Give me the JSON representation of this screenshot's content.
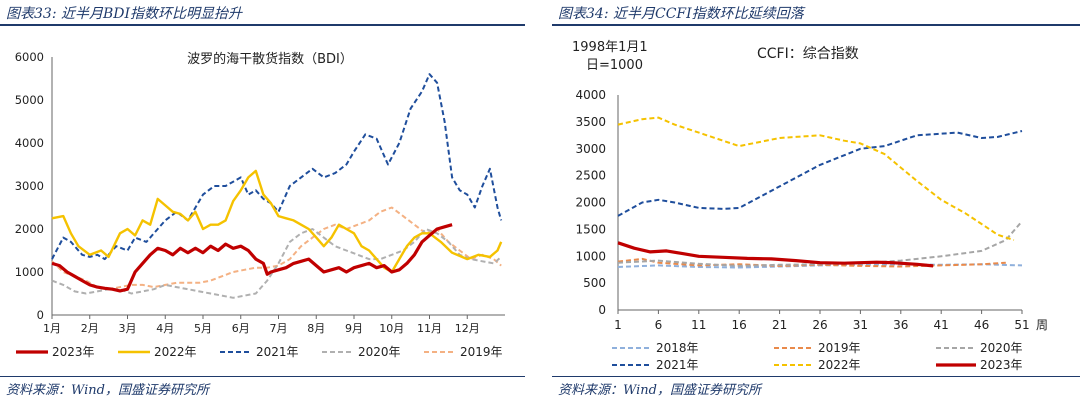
{
  "chart_data": [
    {
      "type": "line",
      "header": "图表33: 近半月BDI指数环比明显抬升",
      "title": "波罗的海干散货指数（BDI）",
      "source": "资料来源：Wind，国盛证券研究所",
      "x_ticks": [
        "1月",
        "2月",
        "3月",
        "4月",
        "5月",
        "6月",
        "7月",
        "8月",
        "9月",
        "10月",
        "11月",
        "12月"
      ],
      "ylim": [
        0,
        6000
      ],
      "y_ticks": [
        "0",
        "1000",
        "2000",
        "3000",
        "4000",
        "5000",
        "6000"
      ],
      "grid": false,
      "legend_position": "bottom",
      "series": [
        {
          "name": "2023年",
          "color": "#c00000",
          "style": "solid-thick",
          "x": [
            0,
            0.2,
            0.4,
            0.6,
            0.8,
            1.0,
            1.2,
            1.4,
            1.6,
            1.8,
            2.0,
            2.1,
            2.2,
            2.4,
            2.6,
            2.8,
            3.0,
            3.2,
            3.4,
            3.6,
            3.8,
            4.0,
            4.2,
            4.4,
            4.6,
            4.8,
            5.0,
            5.2,
            5.4,
            5.6,
            5.7,
            5.8,
            6.0,
            6.2,
            6.4,
            6.6,
            6.8,
            7.0,
            7.2,
            7.4,
            7.6,
            7.8,
            8.0,
            8.2,
            8.4,
            8.6,
            8.8,
            9.0,
            9.2,
            9.4,
            9.6,
            9.8,
            10.0,
            10.2,
            10.4,
            10.6
          ],
          "values": [
            1200,
            1150,
            1000,
            900,
            800,
            700,
            650,
            620,
            600,
            560,
            600,
            800,
            1000,
            1200,
            1400,
            1550,
            1500,
            1400,
            1550,
            1450,
            1550,
            1450,
            1600,
            1500,
            1650,
            1550,
            1600,
            1500,
            1300,
            1200,
            950,
            1000,
            1050,
            1100,
            1200,
            1250,
            1300,
            1150,
            1000,
            1050,
            1100,
            1000,
            1100,
            1150,
            1200,
            1100,
            1150,
            1000,
            1050,
            1200,
            1400,
            1700,
            1850,
            2000,
            2050,
            2100
          ]
        },
        {
          "name": "2022年",
          "color": "#f5c200",
          "style": "solid",
          "x": [
            0,
            0.3,
            0.5,
            0.7,
            1.0,
            1.3,
            1.5,
            1.8,
            2.0,
            2.2,
            2.4,
            2.6,
            2.8,
            3.0,
            3.2,
            3.4,
            3.6,
            3.8,
            4.0,
            4.2,
            4.4,
            4.6,
            4.8,
            5.0,
            5.2,
            5.4,
            5.6,
            5.8,
            6.0,
            6.2,
            6.4,
            6.6,
            6.8,
            7.0,
            7.2,
            7.4,
            7.6,
            7.8,
            8.0,
            8.2,
            8.4,
            8.6,
            8.8,
            9.0,
            9.2,
            9.4,
            9.6,
            9.8,
            10.0,
            10.3,
            10.6,
            11.0,
            11.3,
            11.6,
            11.8,
            11.9
          ],
          "values": [
            2250,
            2300,
            1900,
            1600,
            1400,
            1500,
            1350,
            1900,
            2000,
            1850,
            2200,
            2100,
            2700,
            2550,
            2400,
            2350,
            2200,
            2400,
            2000,
            2100,
            2100,
            2200,
            2650,
            2900,
            3200,
            3350,
            2800,
            2600,
            2300,
            2250,
            2200,
            2100,
            2000,
            1800,
            1600,
            1800,
            2100,
            2000,
            1900,
            1600,
            1500,
            1300,
            1100,
            1000,
            1300,
            1600,
            1800,
            1900,
            1900,
            1700,
            1450,
            1300,
            1400,
            1350,
            1500,
            1700
          ]
        },
        {
          "name": "2021年",
          "color": "#1f4e9c",
          "style": "dashed",
          "x": [
            0,
            0.3,
            0.5,
            0.8,
            1.0,
            1.2,
            1.4,
            1.7,
            2.0,
            2.2,
            2.5,
            2.8,
            3.0,
            3.3,
            3.6,
            4.0,
            4.3,
            4.6,
            5.0,
            5.2,
            5.4,
            5.6,
            5.8,
            6.0,
            6.3,
            6.6,
            6.9,
            7.2,
            7.5,
            7.8,
            8.0,
            8.3,
            8.6,
            8.9,
            9.2,
            9.5,
            9.8,
            10.0,
            10.2,
            10.4,
            10.6,
            10.8,
            11.0,
            11.2,
            11.4,
            11.6,
            11.8,
            11.9
          ],
          "values": [
            1300,
            1800,
            1700,
            1400,
            1350,
            1400,
            1300,
            1600,
            1500,
            1800,
            1700,
            2000,
            2200,
            2400,
            2200,
            2800,
            3000,
            3000,
            3200,
            2800,
            2900,
            2700,
            2600,
            2400,
            3000,
            3200,
            3400,
            3200,
            3300,
            3500,
            3800,
            4200,
            4100,
            3500,
            4000,
            4800,
            5200,
            5600,
            5400,
            4500,
            3200,
            2900,
            2800,
            2500,
            3000,
            3400,
            2500,
            2200
          ]
        },
        {
          "name": "2020年",
          "color": "#b0b0b0",
          "style": "dashed",
          "x": [
            0,
            0.3,
            0.6,
            0.9,
            1.2,
            1.5,
            1.8,
            2.1,
            2.4,
            2.7,
            3.0,
            3.3,
            3.6,
            3.9,
            4.2,
            4.5,
            4.8,
            5.1,
            5.4,
            5.7,
            6.0,
            6.3,
            6.6,
            6.9,
            7.2,
            7.5,
            7.8,
            8.1,
            8.4,
            8.7,
            9.0,
            9.3,
            9.6,
            9.9,
            10.2,
            10.5,
            10.8,
            11.1,
            11.4,
            11.7,
            11.9
          ],
          "values": [
            800,
            700,
            550,
            500,
            550,
            600,
            600,
            500,
            550,
            600,
            700,
            650,
            600,
            550,
            500,
            450,
            400,
            450,
            500,
            800,
            1200,
            1700,
            1900,
            2000,
            1800,
            1600,
            1500,
            1400,
            1300,
            1300,
            1400,
            1500,
            1700,
            2000,
            1900,
            1700,
            1400,
            1300,
            1250,
            1200,
            1350
          ]
        },
        {
          "name": "2019年",
          "color": "#f4b183",
          "style": "dashed",
          "x": [
            0,
            0.3,
            0.6,
            0.9,
            1.2,
            1.5,
            1.8,
            2.1,
            2.4,
            2.7,
            3.0,
            3.3,
            3.6,
            3.9,
            4.2,
            4.5,
            4.8,
            5.1,
            5.4,
            5.7,
            6.0,
            6.3,
            6.6,
            6.9,
            7.2,
            7.5,
            7.8,
            8.1,
            8.4,
            8.7,
            9.0,
            9.3,
            9.6,
            9.9,
            10.2,
            10.5,
            10.8,
            11.1,
            11.4,
            11.7,
            11.9
          ],
          "values": [
            1250,
            1000,
            900,
            800,
            650,
            600,
            650,
            700,
            700,
            650,
            700,
            750,
            750,
            750,
            800,
            900,
            1000,
            1050,
            1100,
            1100,
            1150,
            1300,
            1600,
            1800,
            2000,
            2100,
            2000,
            2100,
            2200,
            2400,
            2500,
            2300,
            2100,
            1900,
            2000,
            1700,
            1500,
            1300,
            1400,
            1300,
            1150
          ]
        }
      ]
    },
    {
      "type": "line",
      "header": "图表34: 近半月CCFI指数环比延续回落",
      "title": "CCFI：综合指数",
      "note": [
        "1998年1月1",
        "日=1000"
      ],
      "source": "资料来源：Wind，国盛证券研究所",
      "xlabel": "周",
      "x_ticks": [
        "1",
        "6",
        "11",
        "16",
        "21",
        "26",
        "31",
        "36",
        "41",
        "46",
        "51"
      ],
      "ylim": [
        0,
        4000
      ],
      "y_ticks": [
        "0",
        "500",
        "1000",
        "1500",
        "2000",
        "2500",
        "3000",
        "3500",
        "4000"
      ],
      "grid": false,
      "legend_position": "bottom",
      "series": [
        {
          "name": "2018年",
          "color": "#8fb0dc",
          "style": "dashed",
          "x": [
            1,
            6,
            11,
            16,
            21,
            26,
            31,
            36,
            41,
            46,
            51
          ],
          "values": [
            800,
            830,
            800,
            790,
            810,
            830,
            840,
            850,
            840,
            850,
            830
          ]
        },
        {
          "name": "2019年",
          "color": "#e98a4b",
          "style": "dashed",
          "x": [
            1,
            4,
            6,
            11,
            16,
            21,
            26,
            31,
            36,
            41,
            46,
            49
          ],
          "values": [
            900,
            950,
            880,
            830,
            850,
            820,
            840,
            820,
            810,
            830,
            850,
            880
          ]
        },
        {
          "name": "2020年",
          "color": "#a6a6a6",
          "style": "dashed",
          "x": [
            1,
            6,
            11,
            16,
            21,
            26,
            31,
            36,
            41,
            46,
            49,
            51
          ],
          "values": [
            880,
            920,
            860,
            820,
            840,
            850,
            870,
            920,
            1000,
            1100,
            1300,
            1650
          ]
        },
        {
          "name": "2021年",
          "color": "#1f4e9c",
          "style": "dashed",
          "x": [
            1,
            4,
            6,
            8,
            11,
            14,
            16,
            21,
            26,
            31,
            34,
            36,
            38,
            41,
            43,
            46,
            48,
            51
          ],
          "values": [
            1750,
            2000,
            2050,
            2000,
            1900,
            1880,
            1900,
            2300,
            2700,
            3000,
            3050,
            3150,
            3250,
            3280,
            3300,
            3200,
            3220,
            3330
          ]
        },
        {
          "name": "2022年",
          "color": "#f5c200",
          "style": "dashed",
          "x": [
            1,
            4,
            6,
            8,
            11,
            14,
            16,
            21,
            26,
            29,
            31,
            34,
            36,
            38,
            41,
            44,
            46,
            48,
            50
          ],
          "values": [
            3450,
            3550,
            3580,
            3450,
            3300,
            3150,
            3050,
            3200,
            3250,
            3150,
            3100,
            2900,
            2650,
            2400,
            2050,
            1800,
            1600,
            1400,
            1300
          ]
        },
        {
          "name": "2023年",
          "color": "#c00000",
          "style": "solid-thick",
          "x": [
            1,
            3,
            5,
            7,
            9,
            11,
            14,
            17,
            20,
            23,
            26,
            29,
            31,
            33,
            35,
            38,
            40
          ],
          "values": [
            1250,
            1150,
            1080,
            1100,
            1050,
            1000,
            980,
            960,
            950,
            920,
            880,
            870,
            880,
            890,
            880,
            850,
            820
          ]
        }
      ]
    }
  ]
}
